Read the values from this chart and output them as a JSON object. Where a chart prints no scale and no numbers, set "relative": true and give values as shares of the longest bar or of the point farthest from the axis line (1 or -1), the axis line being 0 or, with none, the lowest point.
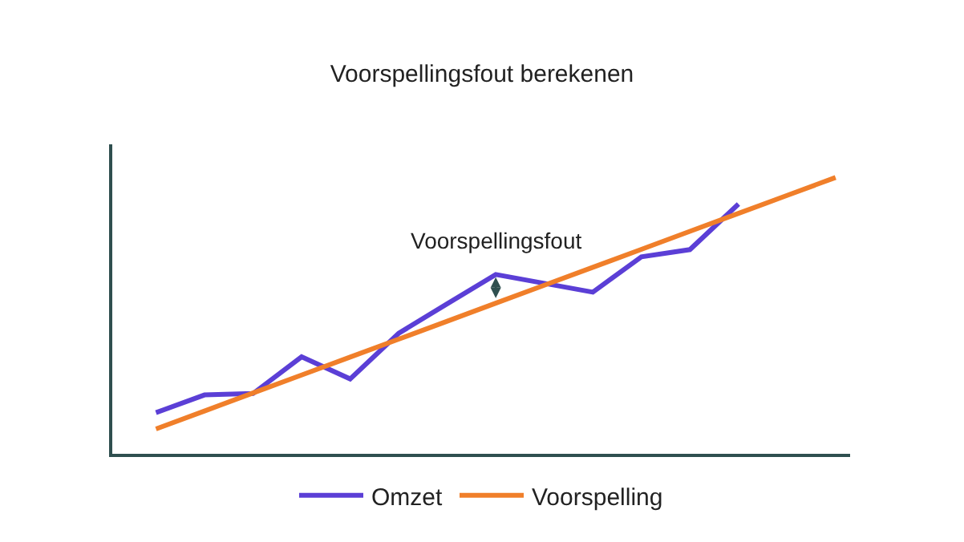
{
  "chart_data": {
    "type": "line",
    "title": "Voorspellingsfout berekenen",
    "relative": true,
    "categories": [
      null,
      null,
      null,
      null,
      null,
      null,
      null,
      null,
      null,
      null,
      null,
      null,
      null,
      null,
      null
    ],
    "series": [
      {
        "name": "Omzet",
        "color": "#5b3fd6",
        "values": [
          0.149,
          0.213,
          0.218,
          0.351,
          0.271,
          0.436,
          0.543,
          0.649,
          0.617,
          0.585,
          0.713,
          0.739,
          0.904,
          null,
          null
        ]
      },
      {
        "name": "Voorspelling",
        "color": "#f07f2a",
        "values": [
          0.09,
          0.155,
          0.22,
          0.285,
          0.35,
          0.415,
          0.48,
          0.545,
          0.61,
          0.675,
          0.74,
          0.805,
          0.87,
          0.935,
          1.0
        ]
      }
    ],
    "annotations": [
      "Voorspellingsfout"
    ],
    "legend": "bottom",
    "marker": "none",
    "line_style": "solid"
  }
}
